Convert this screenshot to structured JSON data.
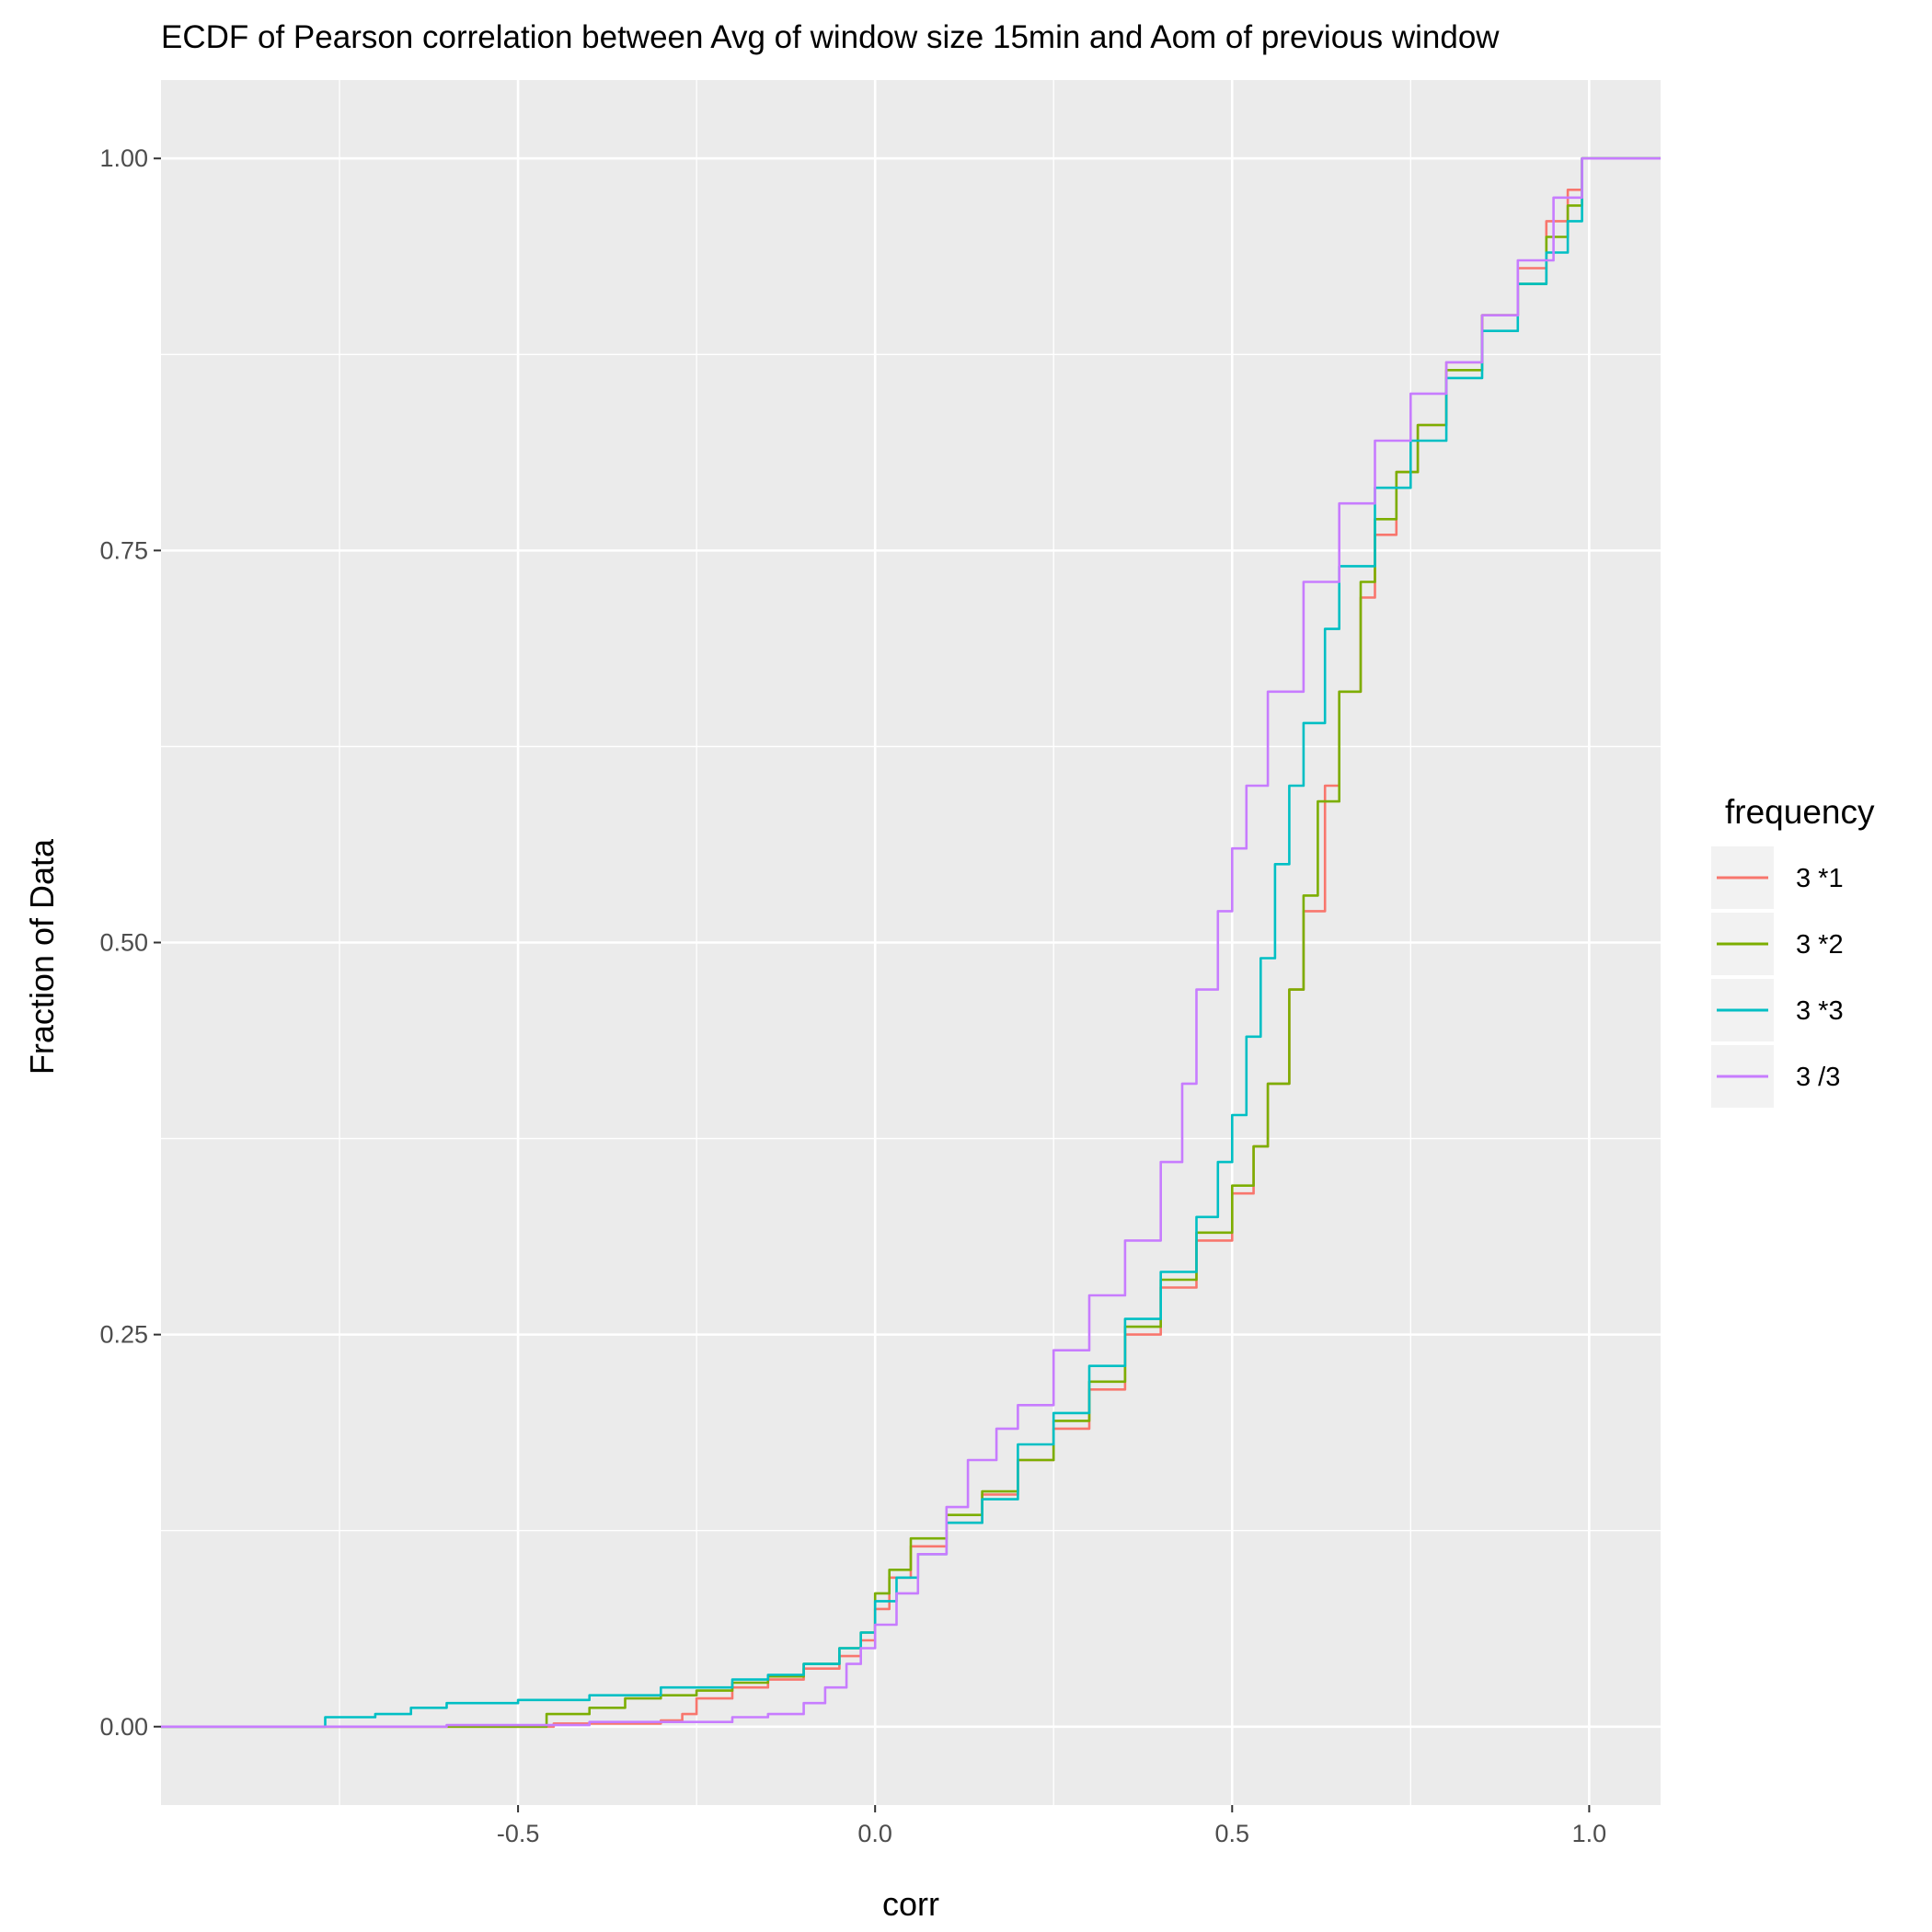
{
  "chart_data": {
    "type": "line",
    "subtype": "ecdf-step",
    "title": "ECDF of Pearson correlation between Avg of window size 15min and Aom of previous window",
    "xlabel": "corr",
    "ylabel": "Fraction of Data",
    "xlim": [
      -1.0,
      1.1
    ],
    "ylim": [
      -0.05,
      1.05
    ],
    "x_ticks": [
      -0.5,
      0.0,
      0.5,
      1.0
    ],
    "x_tick_labels": [
      "-0.5",
      "0.0",
      "0.5",
      "1.0"
    ],
    "y_ticks": [
      0.0,
      0.25,
      0.5,
      0.75,
      1.0
    ],
    "y_tick_labels": [
      "0.00",
      "0.25",
      "0.50",
      "0.75",
      "1.00"
    ],
    "grid": true,
    "panel_background": "#ebebeb",
    "legend": {
      "title": "frequency",
      "position": "right"
    },
    "series": [
      {
        "name": "3 *1",
        "color": "#F8766D",
        "points": [
          [
            -1.0,
            0
          ],
          [
            -0.5,
            0
          ],
          [
            -0.45,
            0.002
          ],
          [
            -0.3,
            0.004
          ],
          [
            -0.27,
            0.008
          ],
          [
            -0.25,
            0.018
          ],
          [
            -0.2,
            0.025
          ],
          [
            -0.15,
            0.03
          ],
          [
            -0.1,
            0.037
          ],
          [
            -0.05,
            0.045
          ],
          [
            -0.02,
            0.055
          ],
          [
            0.0,
            0.075
          ],
          [
            0.02,
            0.095
          ],
          [
            0.05,
            0.115
          ],
          [
            0.1,
            0.13
          ],
          [
            0.15,
            0.148
          ],
          [
            0.2,
            0.17
          ],
          [
            0.25,
            0.19
          ],
          [
            0.3,
            0.215
          ],
          [
            0.35,
            0.25
          ],
          [
            0.4,
            0.28
          ],
          [
            0.45,
            0.31
          ],
          [
            0.5,
            0.34
          ],
          [
            0.53,
            0.37
          ],
          [
            0.55,
            0.41
          ],
          [
            0.58,
            0.47
          ],
          [
            0.6,
            0.52
          ],
          [
            0.63,
            0.6
          ],
          [
            0.65,
            0.66
          ],
          [
            0.68,
            0.72
          ],
          [
            0.7,
            0.76
          ],
          [
            0.73,
            0.8
          ],
          [
            0.76,
            0.83
          ],
          [
            0.8,
            0.87
          ],
          [
            0.85,
            0.9
          ],
          [
            0.9,
            0.93
          ],
          [
            0.94,
            0.96
          ],
          [
            0.97,
            0.98
          ],
          [
            0.99,
            1.0
          ],
          [
            1.1,
            1.0
          ]
        ]
      },
      {
        "name": "3 *2",
        "color": "#7CAE00",
        "points": [
          [
            -1.0,
            0
          ],
          [
            -0.48,
            0
          ],
          [
            -0.46,
            0.008
          ],
          [
            -0.4,
            0.012
          ],
          [
            -0.35,
            0.018
          ],
          [
            -0.3,
            0.02
          ],
          [
            -0.25,
            0.023
          ],
          [
            -0.2,
            0.028
          ],
          [
            -0.15,
            0.032
          ],
          [
            -0.1,
            0.04
          ],
          [
            -0.05,
            0.05
          ],
          [
            -0.02,
            0.06
          ],
          [
            0.0,
            0.085
          ],
          [
            0.02,
            0.1
          ],
          [
            0.05,
            0.12
          ],
          [
            0.1,
            0.135
          ],
          [
            0.15,
            0.15
          ],
          [
            0.2,
            0.17
          ],
          [
            0.25,
            0.195
          ],
          [
            0.3,
            0.22
          ],
          [
            0.35,
            0.255
          ],
          [
            0.4,
            0.285
          ],
          [
            0.45,
            0.315
          ],
          [
            0.5,
            0.345
          ],
          [
            0.53,
            0.37
          ],
          [
            0.55,
            0.41
          ],
          [
            0.58,
            0.47
          ],
          [
            0.6,
            0.53
          ],
          [
            0.62,
            0.59
          ],
          [
            0.65,
            0.66
          ],
          [
            0.68,
            0.73
          ],
          [
            0.7,
            0.77
          ],
          [
            0.73,
            0.8
          ],
          [
            0.76,
            0.83
          ],
          [
            0.8,
            0.865
          ],
          [
            0.85,
            0.9
          ],
          [
            0.9,
            0.92
          ],
          [
            0.94,
            0.95
          ],
          [
            0.97,
            0.97
          ],
          [
            0.99,
            1.0
          ],
          [
            1.1,
            1.0
          ]
        ]
      },
      {
        "name": "3 *3",
        "color": "#00BFC4",
        "points": [
          [
            -1.0,
            0
          ],
          [
            -0.78,
            0
          ],
          [
            -0.77,
            0.006
          ],
          [
            -0.7,
            0.008
          ],
          [
            -0.65,
            0.012
          ],
          [
            -0.6,
            0.015
          ],
          [
            -0.5,
            0.017
          ],
          [
            -0.4,
            0.02
          ],
          [
            -0.3,
            0.025
          ],
          [
            -0.2,
            0.03
          ],
          [
            -0.15,
            0.033
          ],
          [
            -0.1,
            0.04
          ],
          [
            -0.05,
            0.05
          ],
          [
            -0.02,
            0.06
          ],
          [
            0.0,
            0.08
          ],
          [
            0.03,
            0.095
          ],
          [
            0.06,
            0.11
          ],
          [
            0.1,
            0.13
          ],
          [
            0.15,
            0.145
          ],
          [
            0.2,
            0.18
          ],
          [
            0.25,
            0.2
          ],
          [
            0.3,
            0.23
          ],
          [
            0.35,
            0.26
          ],
          [
            0.4,
            0.29
          ],
          [
            0.45,
            0.325
          ],
          [
            0.48,
            0.36
          ],
          [
            0.5,
            0.39
          ],
          [
            0.52,
            0.44
          ],
          [
            0.54,
            0.49
          ],
          [
            0.56,
            0.55
          ],
          [
            0.58,
            0.6
          ],
          [
            0.6,
            0.64
          ],
          [
            0.63,
            0.7
          ],
          [
            0.65,
            0.74
          ],
          [
            0.7,
            0.79
          ],
          [
            0.75,
            0.82
          ],
          [
            0.8,
            0.86
          ],
          [
            0.85,
            0.89
          ],
          [
            0.9,
            0.92
          ],
          [
            0.94,
            0.94
          ],
          [
            0.97,
            0.96
          ],
          [
            0.99,
            1.0
          ],
          [
            1.1,
            1.0
          ]
        ]
      },
      {
        "name": "3 /3",
        "color": "#C77CFF",
        "points": [
          [
            -1.0,
            0
          ],
          [
            -0.8,
            0
          ],
          [
            -0.6,
            0.001
          ],
          [
            -0.4,
            0.003
          ],
          [
            -0.2,
            0.006
          ],
          [
            -0.15,
            0.008
          ],
          [
            -0.1,
            0.015
          ],
          [
            -0.07,
            0.025
          ],
          [
            -0.04,
            0.04
          ],
          [
            -0.02,
            0.05
          ],
          [
            0.0,
            0.065
          ],
          [
            0.03,
            0.085
          ],
          [
            0.06,
            0.11
          ],
          [
            0.1,
            0.14
          ],
          [
            0.13,
            0.17
          ],
          [
            0.17,
            0.19
          ],
          [
            0.2,
            0.205
          ],
          [
            0.25,
            0.24
          ],
          [
            0.3,
            0.275
          ],
          [
            0.35,
            0.31
          ],
          [
            0.4,
            0.36
          ],
          [
            0.43,
            0.41
          ],
          [
            0.45,
            0.47
          ],
          [
            0.48,
            0.52
          ],
          [
            0.5,
            0.56
          ],
          [
            0.52,
            0.6
          ],
          [
            0.55,
            0.66
          ],
          [
            0.6,
            0.73
          ],
          [
            0.65,
            0.78
          ],
          [
            0.7,
            0.82
          ],
          [
            0.75,
            0.85
          ],
          [
            0.8,
            0.87
          ],
          [
            0.85,
            0.9
          ],
          [
            0.9,
            0.935
          ],
          [
            0.95,
            0.975
          ],
          [
            0.99,
            1.0
          ],
          [
            1.1,
            1.0
          ]
        ]
      }
    ]
  }
}
